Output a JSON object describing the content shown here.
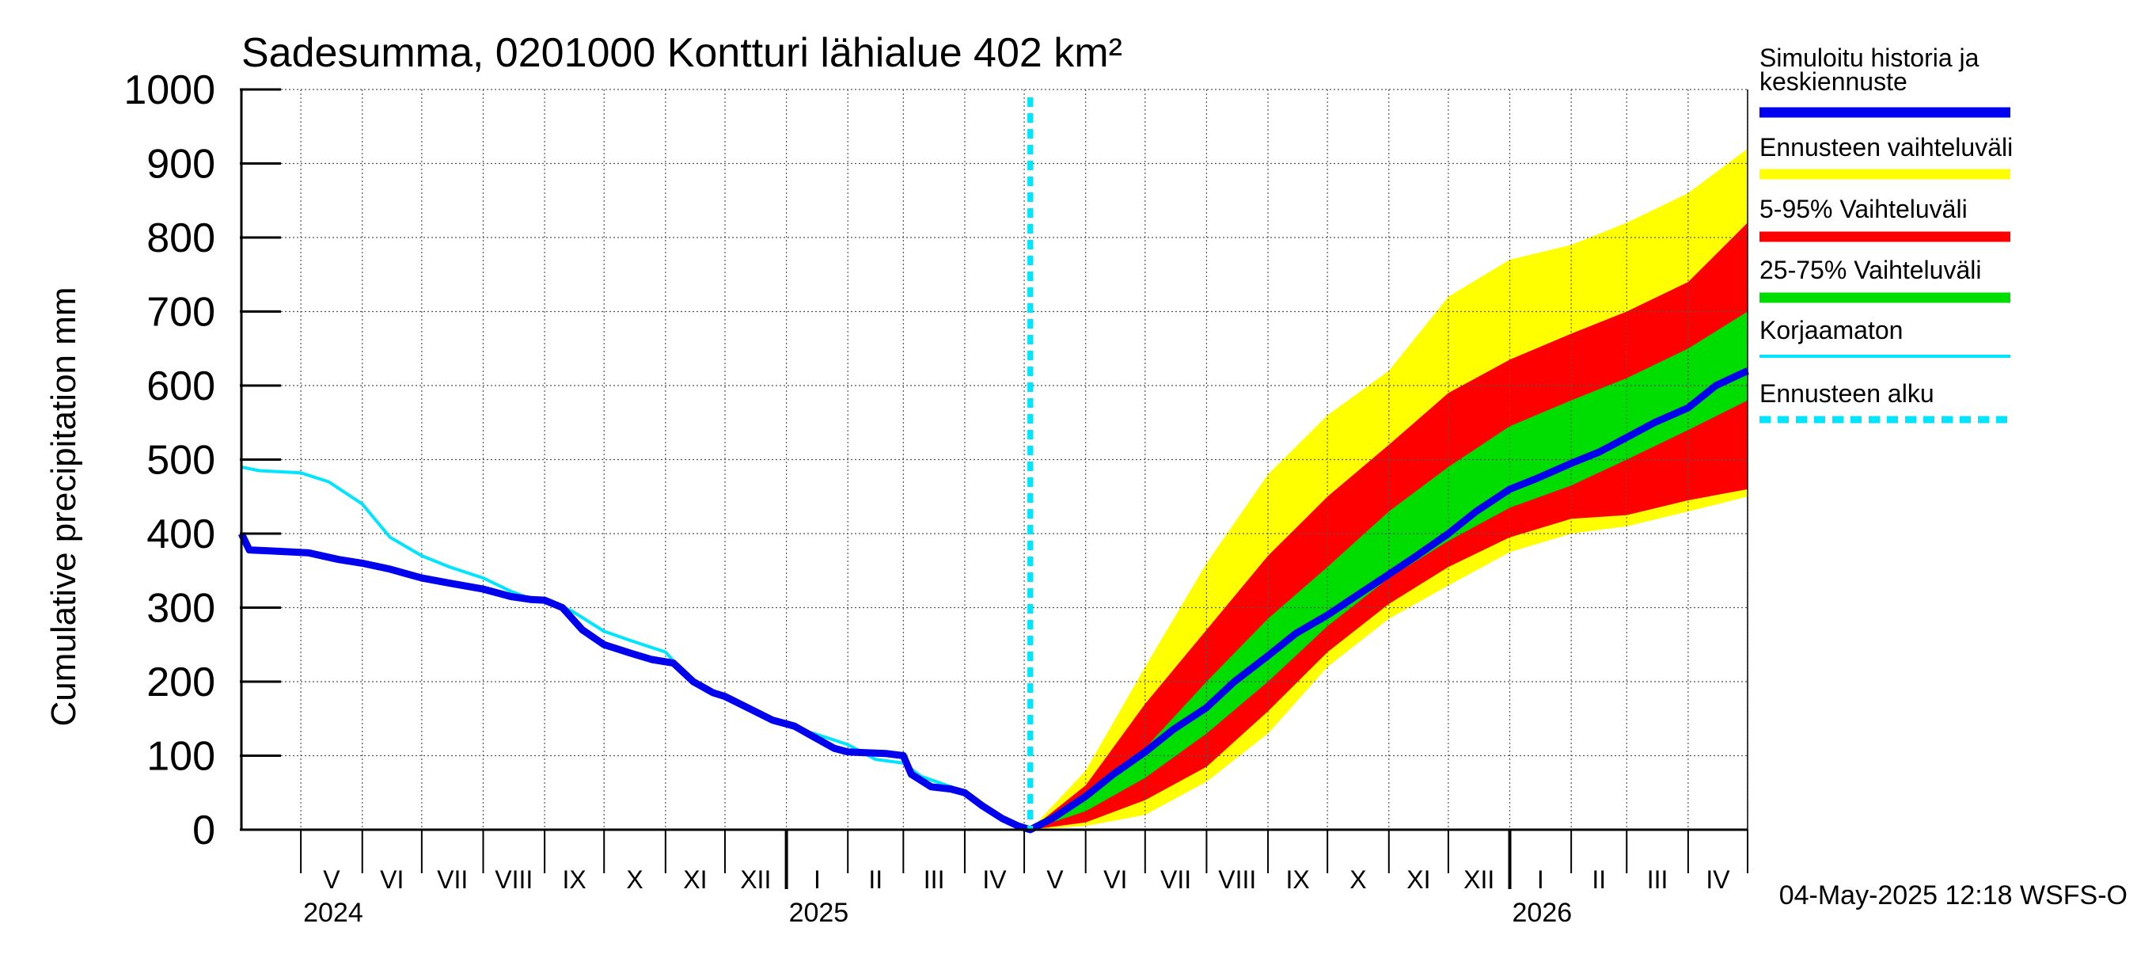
{
  "chart_data": {
    "type": "area",
    "title": "Sadesumma, 0201000 Kontturi lähialue 402 km²",
    "ylabel": "Cumulative precipitation   mm",
    "ylim": [
      0,
      1000
    ],
    "yticks": [
      0,
      100,
      200,
      300,
      400,
      500,
      600,
      700,
      800,
      900,
      1000
    ],
    "xlim": [
      "2024-04-01",
      "2026-05-01"
    ],
    "month_labels": [
      "V",
      "VI",
      "VII",
      "VIII",
      "IX",
      "X",
      "XI",
      "XII",
      "I",
      "II",
      "III",
      "IV",
      "V",
      "VI",
      "VII",
      "VIII",
      "IX",
      "X",
      "XI",
      "XII",
      "I",
      "II",
      "III",
      "IV"
    ],
    "month_starts": [
      "2024-05-01",
      "2024-06-01",
      "2024-07-01",
      "2024-08-01",
      "2024-09-01",
      "2024-10-01",
      "2024-11-01",
      "2024-12-01",
      "2025-01-01",
      "2025-02-01",
      "2025-03-01",
      "2025-04-01",
      "2025-05-01",
      "2025-06-01",
      "2025-07-01",
      "2025-08-01",
      "2025-09-01",
      "2025-10-01",
      "2025-11-01",
      "2025-12-01",
      "2026-01-01",
      "2026-02-01",
      "2026-03-01",
      "2026-04-01",
      "2026-05-01"
    ],
    "year_labels": [
      {
        "label": "2024",
        "date": "2024-05-01"
      },
      {
        "label": "2025",
        "date": "2025-01-01"
      },
      {
        "label": "2026",
        "date": "2026-01-01"
      }
    ],
    "forecast_start": "2025-05-04",
    "series": [
      {
        "name": "Simuloitu historia ja keskiennuste",
        "color": "#0000ee",
        "x": [
          "2024-04-01",
          "2024-04-05",
          "2024-04-20",
          "2024-05-05",
          "2024-05-20",
          "2024-06-01",
          "2024-06-15",
          "2024-07-01",
          "2024-07-15",
          "2024-08-01",
          "2024-08-15",
          "2024-08-25",
          "2024-09-01",
          "2024-09-10",
          "2024-09-20",
          "2024-10-01",
          "2024-10-15",
          "2024-10-25",
          "2024-11-05",
          "2024-11-15",
          "2024-11-25",
          "2024-12-01",
          "2024-12-10",
          "2024-12-25",
          "2025-01-05",
          "2025-01-15",
          "2025-01-25",
          "2025-02-01",
          "2025-02-10",
          "2025-02-20",
          "2025-03-01",
          "2025-03-05",
          "2025-03-15",
          "2025-03-25",
          "2025-04-01",
          "2025-04-10",
          "2025-04-20",
          "2025-04-28",
          "2025-05-04",
          "2025-05-15",
          "2025-06-01",
          "2025-06-15",
          "2025-07-01",
          "2025-07-15",
          "2025-08-01",
          "2025-08-15",
          "2025-09-01",
          "2025-09-15",
          "2025-10-01",
          "2025-10-15",
          "2025-11-01",
          "2025-11-15",
          "2025-12-01",
          "2025-12-15",
          "2026-01-01",
          "2026-01-15",
          "2026-02-01",
          "2026-02-15",
          "2026-03-01",
          "2026-03-15",
          "2026-04-01",
          "2026-04-15",
          "2026-05-01"
        ],
        "values": [
          400,
          378,
          376,
          374,
          365,
          360,
          352,
          340,
          333,
          325,
          315,
          311,
          310,
          300,
          270,
          250,
          238,
          230,
          225,
          200,
          185,
          180,
          168,
          148,
          140,
          125,
          110,
          105,
          104,
          103,
          100,
          75,
          58,
          55,
          50,
          32,
          15,
          5,
          0,
          15,
          45,
          75,
          105,
          135,
          165,
          200,
          235,
          265,
          290,
          315,
          345,
          370,
          400,
          430,
          460,
          475,
          495,
          510,
          530,
          550,
          570,
          600,
          620
        ]
      },
      {
        "name": "Korjaamaton",
        "color": "#00e5ff",
        "x": [
          "2024-04-01",
          "2024-04-10",
          "2024-05-01",
          "2024-05-15",
          "2024-06-01",
          "2024-06-15",
          "2024-07-01",
          "2024-07-15",
          "2024-08-01",
          "2024-08-15",
          "2024-08-25",
          "2024-09-01",
          "2024-09-15",
          "2024-10-01",
          "2024-10-15",
          "2024-11-01",
          "2024-11-15",
          "2024-12-01",
          "2024-12-15",
          "2025-01-01",
          "2025-01-15",
          "2025-02-01",
          "2025-02-15",
          "2025-03-01",
          "2025-03-10",
          "2025-03-25",
          "2025-04-01",
          "2025-04-10",
          "2025-04-20",
          "2025-04-28",
          "2025-05-04"
        ],
        "values": [
          490,
          485,
          482,
          470,
          440,
          395,
          370,
          355,
          340,
          322,
          312,
          312,
          295,
          268,
          255,
          240,
          198,
          180,
          160,
          140,
          130,
          115,
          95,
          90,
          72,
          58,
          50,
          32,
          15,
          8,
          0
        ]
      }
    ],
    "bands": [
      {
        "name": "Ennusteen vaihteluväli",
        "color": "#ffff00",
        "x": [
          "2025-05-04",
          "2025-06-01",
          "2025-07-01",
          "2025-08-01",
          "2025-09-01",
          "2025-10-01",
          "2025-11-01",
          "2025-12-01",
          "2026-01-01",
          "2026-02-01",
          "2026-03-01",
          "2026-04-01",
          "2026-05-01"
        ],
        "low": [
          0,
          5,
          20,
          65,
          130,
          220,
          285,
          330,
          375,
          400,
          410,
          430,
          450
        ],
        "high": [
          0,
          80,
          220,
          360,
          480,
          560,
          620,
          720,
          770,
          790,
          820,
          860,
          920
        ]
      },
      {
        "name": "5-95% Vaihteluväli",
        "color": "#ff0000",
        "x": [
          "2025-05-04",
          "2025-06-01",
          "2025-07-01",
          "2025-08-01",
          "2025-09-01",
          "2025-10-01",
          "2025-11-01",
          "2025-12-01",
          "2026-01-01",
          "2026-02-01",
          "2026-03-01",
          "2026-04-01",
          "2026-05-01"
        ],
        "low": [
          0,
          10,
          40,
          85,
          160,
          240,
          305,
          355,
          395,
          420,
          425,
          445,
          460
        ],
        "high": [
          0,
          60,
          170,
          270,
          370,
          450,
          520,
          590,
          635,
          670,
          700,
          740,
          820
        ]
      },
      {
        "name": "25-75% Vaihteluväli",
        "color": "#00dd00",
        "x": [
          "2025-05-04",
          "2025-06-01",
          "2025-07-01",
          "2025-08-01",
          "2025-09-01",
          "2025-10-01",
          "2025-11-01",
          "2025-12-01",
          "2026-01-01",
          "2026-02-01",
          "2026-03-01",
          "2026-04-01",
          "2026-05-01"
        ],
        "low": [
          0,
          25,
          70,
          130,
          200,
          275,
          340,
          390,
          435,
          465,
          500,
          540,
          580
        ],
        "high": [
          0,
          40,
          110,
          200,
          285,
          355,
          430,
          490,
          545,
          580,
          610,
          650,
          700
        ]
      }
    ],
    "legend": [
      {
        "label": "Simuloitu historia ja keskiennuste",
        "color": "#0000ee",
        "style": "thick"
      },
      {
        "label": "Ennusteen vaihteluväli",
        "color": "#ffff00",
        "style": "thick"
      },
      {
        "label": "5-95% Vaihteluväli",
        "color": "#ff0000",
        "style": "thick"
      },
      {
        "label": "25-75% Vaihteluväli",
        "color": "#00dd00",
        "style": "thick"
      },
      {
        "label": "Korjaamaton",
        "color": "#00e5ff",
        "style": "thin"
      },
      {
        "label": "Ennusteen alku",
        "color": "#00e5ff",
        "style": "dashed"
      }
    ],
    "legend_position": "right",
    "grid": true,
    "footer": "04-May-2025 12:18 WSFS-O"
  }
}
